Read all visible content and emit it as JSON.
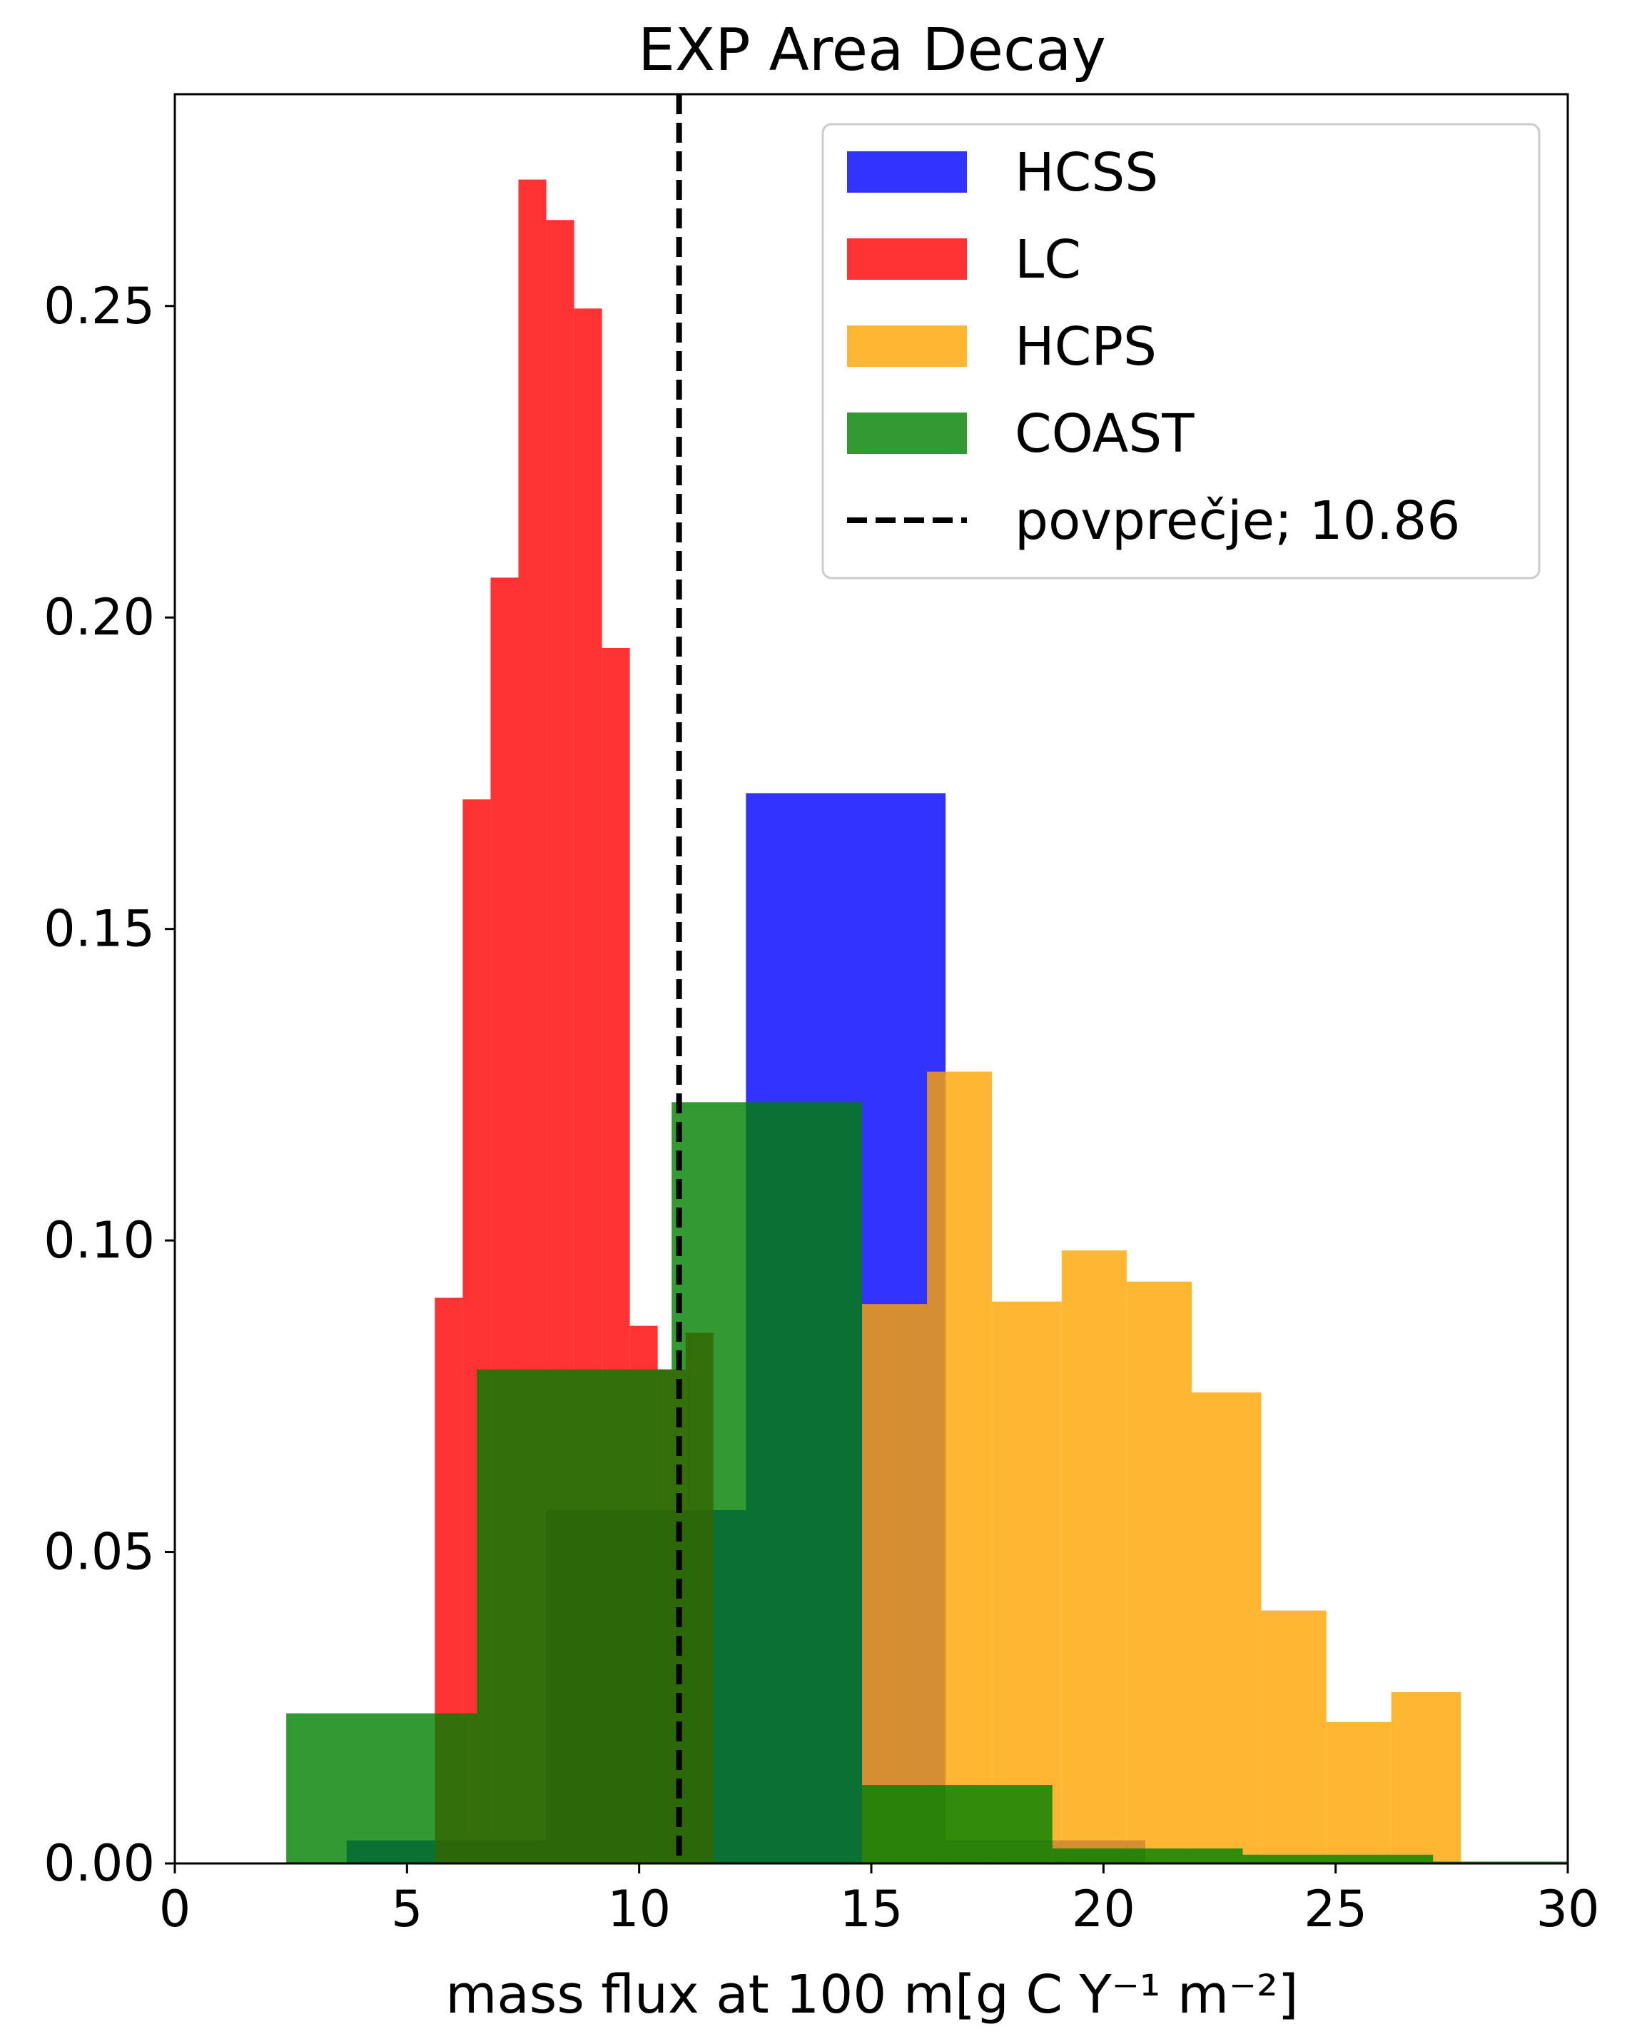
{
  "chart_data": {
    "type": "bar",
    "title": "EXP Area Decay",
    "xlabel": "mass flux at 100 m[g C Y⁻¹ m⁻²]",
    "ylabel": "",
    "xlim": [
      0,
      30
    ],
    "ylim": [
      0,
      0.284
    ],
    "xticks": [
      "0",
      "5",
      "10",
      "15",
      "20",
      "25",
      "30"
    ],
    "yticks": [
      "0.00",
      "0.05",
      "0.10",
      "0.15",
      "0.20",
      "0.25"
    ],
    "grid": false,
    "legend_position": "top-right",
    "series": [
      {
        "name": "HCSS",
        "color": "#0000ff",
        "bins": [
          {
            "x0": 3.7,
            "x1": 8.0,
            "value": 0.0037
          },
          {
            "x0": 8.0,
            "x1": 12.3,
            "value": 0.0567
          },
          {
            "x0": 12.3,
            "x1": 16.6,
            "value": 0.1718
          },
          {
            "x0": 16.6,
            "x1": 20.9,
            "value": 0.0037
          }
        ]
      },
      {
        "name": "LC",
        "color": "#ff0000",
        "bins": [
          {
            "x0": 5.6,
            "x1": 6.2,
            "value": 0.0908
          },
          {
            "x0": 6.2,
            "x1": 6.8,
            "value": 0.1708
          },
          {
            "x0": 6.8,
            "x1": 7.4,
            "value": 0.2064
          },
          {
            "x0": 7.4,
            "x1": 8.0,
            "value": 0.2703
          },
          {
            "x0": 8.0,
            "x1": 8.6,
            "value": 0.2638
          },
          {
            "x0": 8.6,
            "x1": 9.2,
            "value": 0.2496
          },
          {
            "x0": 9.2,
            "x1": 9.8,
            "value": 0.1951
          },
          {
            "x0": 9.8,
            "x1": 10.4,
            "value": 0.0863
          },
          {
            "x0": 10.4,
            "x1": 11.0,
            "value": 0.0793
          },
          {
            "x0": 11.0,
            "x1": 11.6,
            "value": 0.0852
          }
        ]
      },
      {
        "name": "HCPS",
        "color": "#ffa500",
        "bins": [
          {
            "x0": 14.8,
            "x1": 16.2,
            "value": 0.0898
          },
          {
            "x0": 16.2,
            "x1": 17.6,
            "value": 0.1271
          },
          {
            "x0": 17.6,
            "x1": 19.1,
            "value": 0.0902
          },
          {
            "x0": 19.1,
            "x1": 20.5,
            "value": 0.0984
          },
          {
            "x0": 20.5,
            "x1": 21.9,
            "value": 0.0934
          },
          {
            "x0": 21.9,
            "x1": 23.4,
            "value": 0.0756
          },
          {
            "x0": 23.4,
            "x1": 24.8,
            "value": 0.0406
          },
          {
            "x0": 24.8,
            "x1": 26.2,
            "value": 0.0227
          },
          {
            "x0": 26.2,
            "x1": 27.7,
            "value": 0.0275
          }
        ]
      },
      {
        "name": "COAST",
        "color": "#008000",
        "bins": [
          {
            "x0": 2.4,
            "x1": 6.5,
            "value": 0.0241
          },
          {
            "x0": 6.5,
            "x1": 10.7,
            "value": 0.0793
          },
          {
            "x0": 10.7,
            "x1": 14.8,
            "value": 0.1222
          },
          {
            "x0": 14.8,
            "x1": 18.9,
            "value": 0.0126
          },
          {
            "x0": 18.9,
            "x1": 23.0,
            "value": 0.0024
          },
          {
            "x0": 23.0,
            "x1": 27.1,
            "value": 0.0014
          },
          {
            "x0": 27.1,
            "x1": 31.3,
            "value": 0.0003
          }
        ]
      }
    ],
    "mean_line": {
      "label": "povprečje; 10.86",
      "value": 10.86,
      "color": "#000000",
      "style": "dashed"
    }
  }
}
